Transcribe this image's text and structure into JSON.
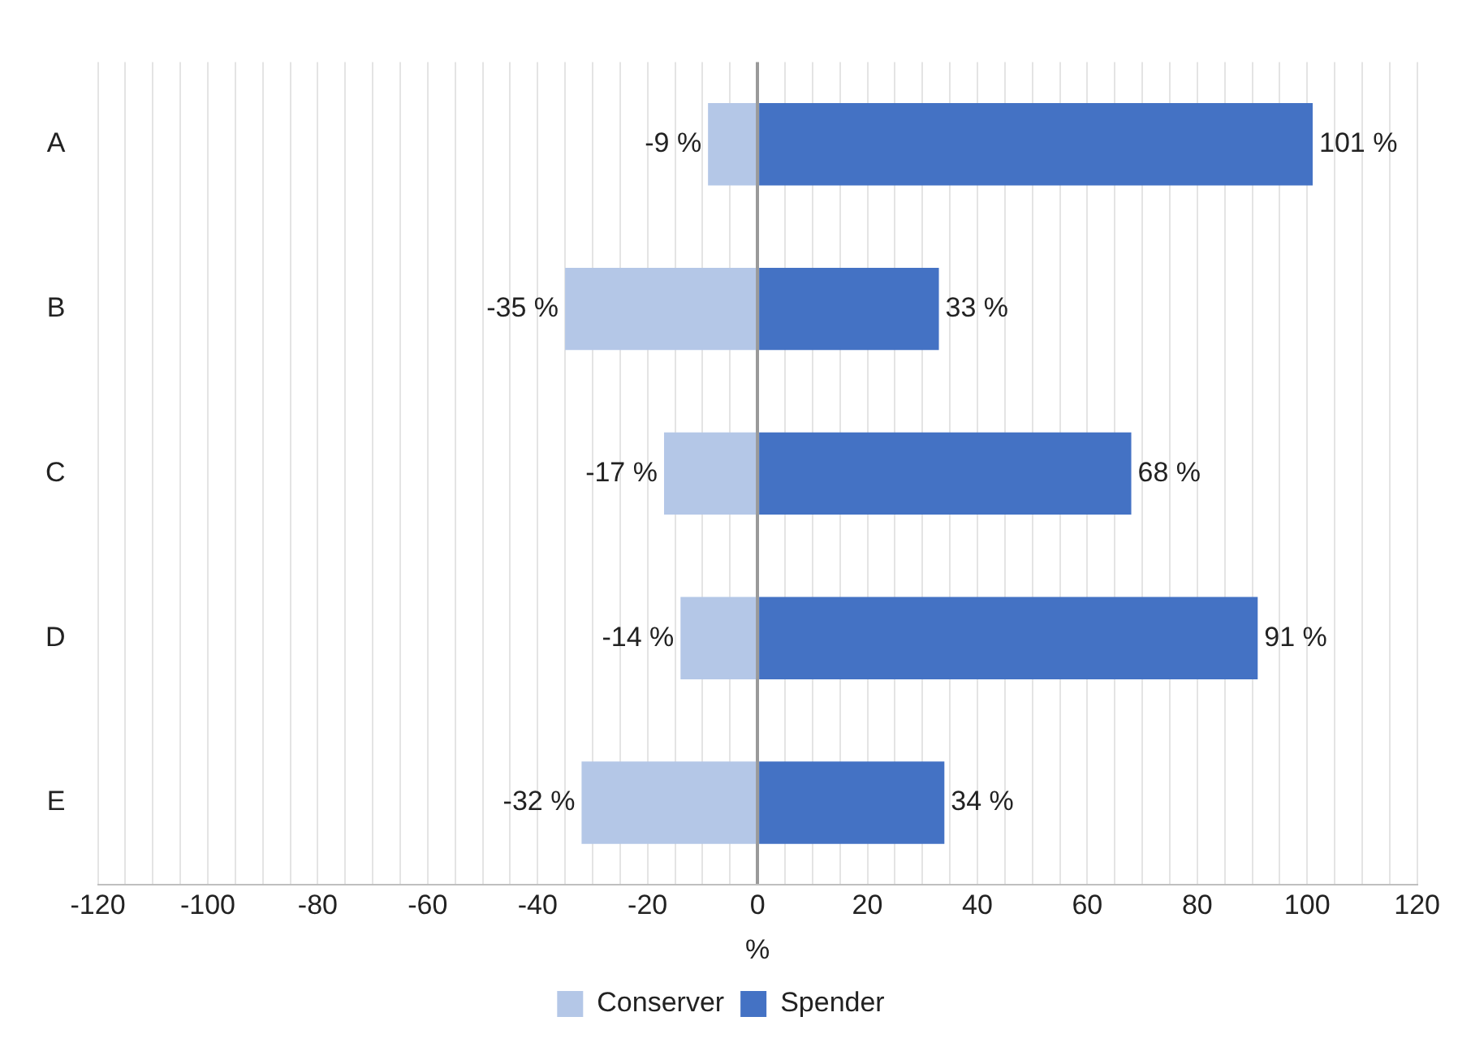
{
  "chart_data": {
    "type": "bar",
    "orientation": "horizontal",
    "stacked": true,
    "categories": [
      "A",
      "B",
      "C",
      "D",
      "E"
    ],
    "series": [
      {
        "name": "Conserver",
        "color": "#b4c7e7",
        "values": [
          -9,
          -35,
          -17,
          -14,
          -32
        ],
        "value_labels": [
          "-9 %",
          "-35 %",
          "-17 %",
          "-14 %",
          "-32 %"
        ]
      },
      {
        "name": "Spender",
        "color": "#4472c4",
        "values": [
          101,
          33,
          68,
          91,
          34
        ],
        "value_labels": [
          "101 %",
          "33 %",
          "68 %",
          "91 %",
          "34 %"
        ]
      }
    ],
    "xlabel": "%",
    "xlim": [
      -120,
      120
    ],
    "xticks": [
      -120,
      {
        "value": -115,
        "label": null
      },
      {
        "value": -110,
        "label": null
      },
      {
        "value": -105,
        "label": null
      },
      -100,
      {
        "value": -95,
        "label": null
      },
      {
        "value": -90,
        "label": null
      },
      {
        "value": -85,
        "label": null
      },
      -80,
      {
        "value": -75,
        "label": null
      },
      {
        "value": -70,
        "label": null
      },
      {
        "value": -65,
        "label": null
      },
      -60,
      {
        "value": -55,
        "label": null
      },
      {
        "value": -50,
        "label": null
      },
      {
        "value": -45,
        "label": null
      },
      -40,
      {
        "value": -35,
        "label": null
      },
      {
        "value": -30,
        "label": null
      },
      {
        "value": -25,
        "label": null
      },
      -20,
      {
        "value": -15,
        "label": null
      },
      {
        "value": -10,
        "label": null
      },
      {
        "value": -5,
        "label": null
      },
      0,
      {
        "value": 5,
        "label": null
      },
      {
        "value": 10,
        "label": null
      },
      {
        "value": 15,
        "label": null
      },
      20,
      {
        "value": 25,
        "label": null
      },
      {
        "value": 30,
        "label": null
      },
      {
        "value": 35,
        "label": null
      },
      40,
      {
        "value": 45,
        "label": null
      },
      {
        "value": 50,
        "label": null
      },
      {
        "value": 55,
        "label": null
      },
      60,
      {
        "value": 65,
        "label": null
      },
      {
        "value": 70,
        "label": null
      },
      {
        "value": 75,
        "label": null
      },
      80,
      {
        "value": 85,
        "label": null
      },
      {
        "value": 90,
        "label": null
      },
      {
        "value": 95,
        "label": null
      },
      100,
      {
        "value": 105,
        "label": null
      },
      {
        "value": 110,
        "label": null
      },
      {
        "value": 115,
        "label": null
      },
      120
    ],
    "grid": "x",
    "legend": "bottom"
  }
}
